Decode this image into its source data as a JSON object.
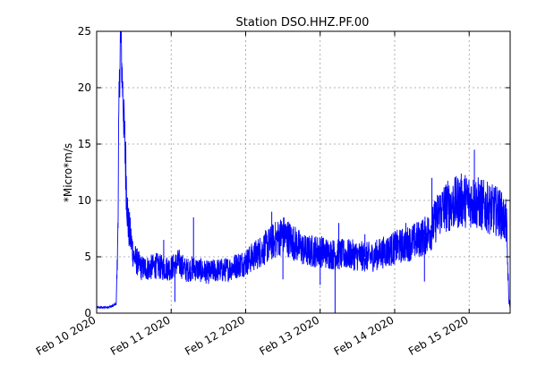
{
  "chart_data": {
    "type": "line",
    "title": "Station DSO.HHZ.PF.00",
    "xlabel": "",
    "ylabel": "*Micro*m/s",
    "ylim": [
      0,
      25
    ],
    "xlim_days": [
      0,
      5.55
    ],
    "y_ticks": [
      0,
      5,
      10,
      15,
      20,
      25
    ],
    "x_ticks": [
      {
        "day": 0,
        "label": "Feb 10 2020"
      },
      {
        "day": 1,
        "label": "Feb 11 2020"
      },
      {
        "day": 2,
        "label": "Feb 12 2020"
      },
      {
        "day": 3,
        "label": "Feb 13 2020"
      },
      {
        "day": 4,
        "label": "Feb 14 2020"
      },
      {
        "day": 5,
        "label": "Feb 15 2020"
      }
    ],
    "grid": true,
    "color": "#0000ff",
    "series": [
      {
        "x": [
          0,
          0.1,
          0.2,
          0.26,
          0.28,
          0.3,
          0.32,
          0.36,
          0.42,
          0.5,
          0.6,
          0.7,
          0.8,
          0.9,
          1.0,
          1.1,
          1.2,
          1.3,
          1.4,
          1.5,
          1.6,
          1.7,
          1.8,
          1.9,
          2.0,
          2.1,
          2.2,
          2.3,
          2.4,
          2.5,
          2.6,
          2.7,
          2.8,
          2.9,
          3.0,
          3.1,
          3.2,
          3.3,
          3.4,
          3.5,
          3.6,
          3.7,
          3.8,
          3.9,
          4.0,
          4.1,
          4.2,
          4.3,
          4.4,
          4.5,
          4.6,
          4.7,
          4.8,
          4.9,
          5.0,
          5.1,
          5.2,
          5.3,
          5.4,
          5.45,
          5.5,
          5.53,
          5.55
        ],
        "y": [
          0.5,
          0.5,
          0.6,
          0.8,
          5,
          18,
          25,
          18,
          8,
          5,
          4,
          4,
          4.2,
          4,
          4,
          4.5,
          3.8,
          4,
          3.8,
          3.6,
          3.8,
          3.8,
          4,
          4.3,
          4.5,
          5,
          5.5,
          6,
          6.5,
          7,
          6.5,
          6,
          5.5,
          5.5,
          5.5,
          5.3,
          5.2,
          5.2,
          5.2,
          5.1,
          5,
          5,
          5.3,
          5.5,
          5.8,
          6,
          6.2,
          6.5,
          6.8,
          7.5,
          9,
          9.5,
          9.7,
          10,
          10,
          9.8,
          9.5,
          9.2,
          9,
          8.5,
          8,
          1.5,
          0.4
        ],
        "spikes": [
          {
            "x": 0.9,
            "y": 6.5
          },
          {
            "x": 1.05,
            "y": 1.0
          },
          {
            "x": 1.3,
            "y": 8.5
          },
          {
            "x": 2.35,
            "y": 9.0
          },
          {
            "x": 2.5,
            "y": 3.0
          },
          {
            "x": 3.0,
            "y": 2.5
          },
          {
            "x": 3.2,
            "y": 0.0
          },
          {
            "x": 3.25,
            "y": 8.0
          },
          {
            "x": 3.6,
            "y": 7.0
          },
          {
            "x": 4.15,
            "y": 8.0
          },
          {
            "x": 4.4,
            "y": 2.8
          },
          {
            "x": 4.5,
            "y": 12.0
          },
          {
            "x": 5.07,
            "y": 14.5
          },
          {
            "x": 5.4,
            "y": 10.5
          }
        ]
      }
    ]
  }
}
